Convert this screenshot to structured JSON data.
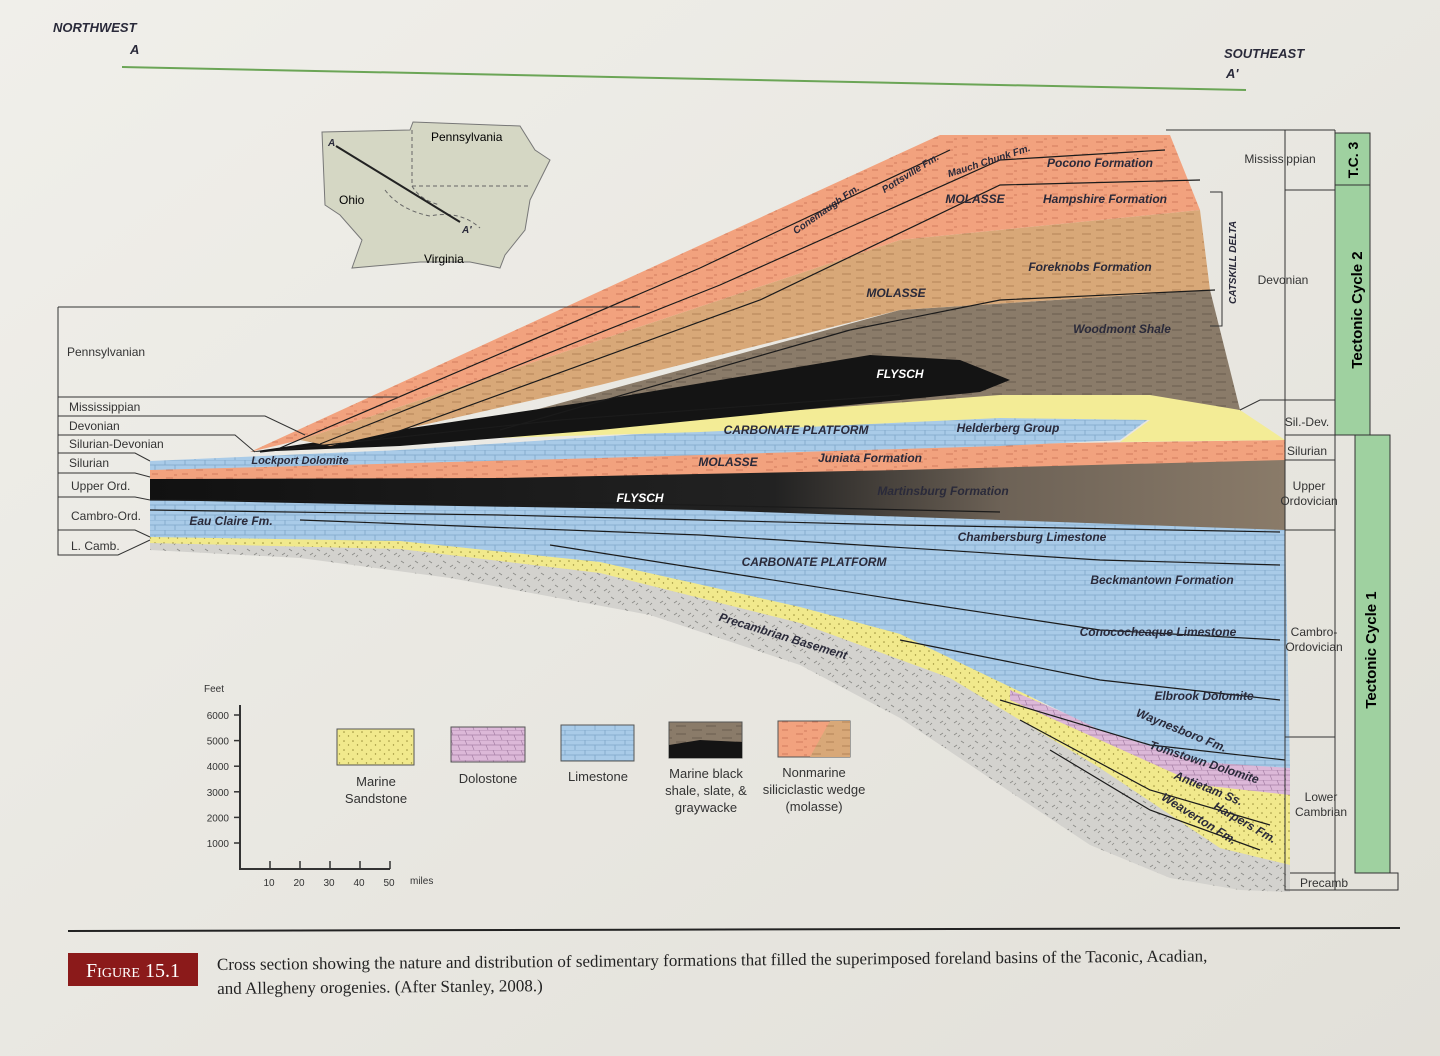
{
  "header": {
    "northwest": "NORTHWEST",
    "a": "A",
    "southeast": "SOUTHEAST",
    "a_prime": "A'"
  },
  "map": {
    "pennsylvania": "Pennsylvania",
    "ohio": "Ohio",
    "virginia": "Virginia",
    "a": "A",
    "a_prime": "A'"
  },
  "left_periods": [
    "Pennsylvanian",
    "Mississippian",
    "Devonian",
    "Silurian-Devonian",
    "Silurian",
    "Upper Ord.",
    "Cambro-Ord.",
    "L. Camb."
  ],
  "right_periods": [
    [
      "Mississippian"
    ],
    [
      "Devonian"
    ],
    [
      "Sil.-Dev."
    ],
    [
      "Silurian"
    ],
    [
      "Upper",
      "Ordovician"
    ],
    [
      "Cambro-",
      "Ordovician"
    ],
    [
      "Lower",
      "Cambrian"
    ],
    [
      "Precamb"
    ]
  ],
  "cycles": [
    "T.C. 3",
    "Tectonic Cycle 2",
    "Tectonic Cycle 1"
  ],
  "catskill": "CATSKILL DELTA",
  "formations": [
    "Pocono Formation",
    "Hampshire Formation",
    "MOLASSE",
    "Mauch Chunk Fm.",
    "Pottsville Fm.",
    "Conemaugh Fm.",
    "Foreknobs Formation",
    "MOLASSE",
    "Woodmont Shale",
    "FLYSCH",
    "CARBONATE PLATFORM",
    "Helderberg Group",
    "Lockport Dolomite",
    "MOLASSE",
    "Juniata Formation",
    "Martinsburg Formation",
    "FLYSCH",
    "Eau Claire Fm.",
    "Chambersburg Limestone",
    "CARBONATE PLATFORM",
    "Beckmantown Formation",
    "Precambrian Basement",
    "Conococheaque Limestone",
    "Elbrook Dolomite",
    "Waynesboro Fm.",
    "Tomstown Dolomite",
    "Antietam Ss.",
    "Harpers Fm.",
    "Weaverton Fm."
  ],
  "scale": {
    "feet_label": "Feet",
    "feet": [
      6000,
      5000,
      4000,
      3000,
      2000,
      1000
    ],
    "miles": [
      10,
      20,
      30,
      40,
      50
    ],
    "miles_label": "miles"
  },
  "legend": [
    [
      "Marine",
      "Sandstone"
    ],
    [
      "Dolostone"
    ],
    [
      "Limestone"
    ],
    [
      "Marine black",
      "shale, slate, &",
      "graywacke"
    ],
    [
      "Nonmarine",
      "siliciclastic wedge",
      "(molasse)"
    ]
  ],
  "caption": {
    "figure": "Figure 15.1",
    "lines": [
      "Cross section showing the nature and distribution of sedimentary formations that filled the superimposed foreland basins of the Taconic, Acadian,",
      "and Allegheny orogenies. (After Stanley, 2008.)"
    ]
  }
}
